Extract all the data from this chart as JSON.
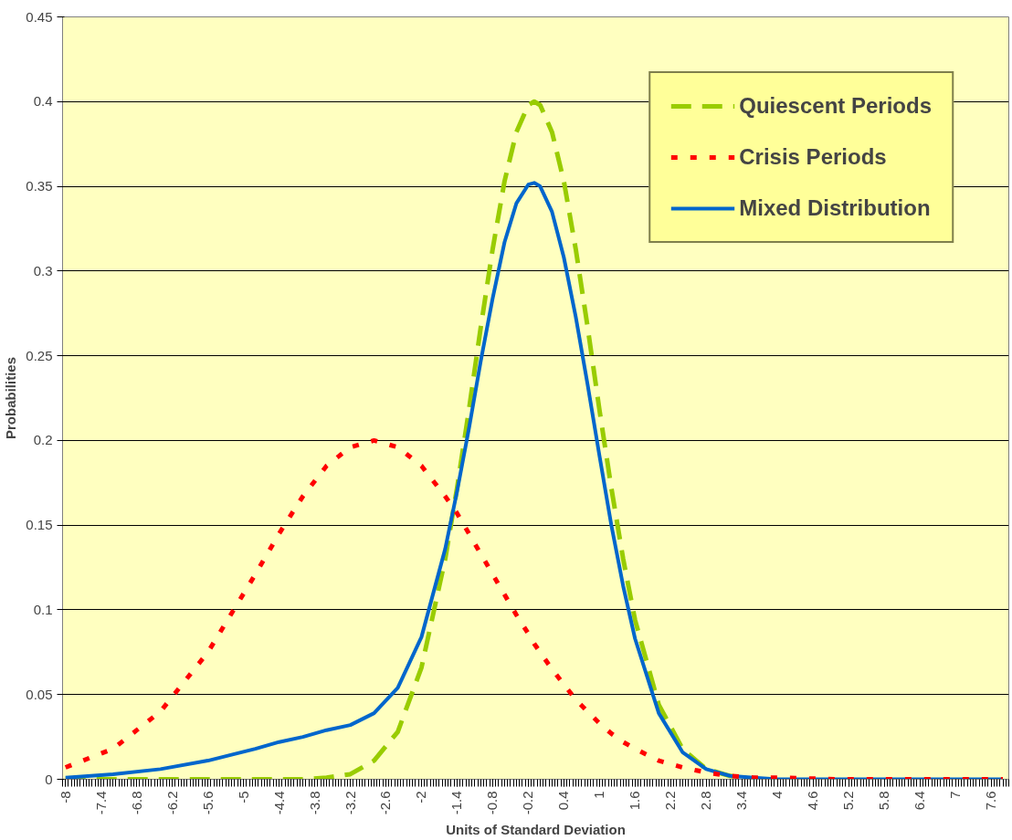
{
  "chart_data": {
    "type": "line",
    "xlabel": "Units of Standard Deviation",
    "ylabel": "Probabilities",
    "x": [
      -8,
      -7.2,
      -6.4,
      -5.6,
      -4.8,
      -4.4,
      -4,
      -3.6,
      -3.2,
      -2.8,
      -2.4,
      -2,
      -1.6,
      -1.4,
      -1.2,
      -1,
      -0.8,
      -0.6,
      -0.4,
      -0.2,
      -0.1,
      0,
      0.2,
      0.4,
      0.6,
      0.8,
      1,
      1.2,
      1.4,
      1.6,
      2,
      2.4,
      2.8,
      3.2,
      3.6,
      4,
      5,
      6,
      7,
      7.8
    ],
    "series": [
      {
        "name": "Quiescent Periods",
        "color": "#99cc00",
        "line_style": "dashed",
        "values": [
          0,
          0,
          0,
          0,
          0,
          0,
          0,
          0.001,
          0.003,
          0.011,
          0.028,
          0.066,
          0.13,
          0.172,
          0.218,
          0.267,
          0.313,
          0.353,
          0.382,
          0.398,
          0.4,
          0.398,
          0.382,
          0.353,
          0.313,
          0.267,
          0.218,
          0.172,
          0.13,
          0.094,
          0.044,
          0.018,
          0.006,
          0.002,
          0,
          null,
          null,
          null,
          null,
          null
        ]
      },
      {
        "name": "Crisis Periods",
        "color": "#ff0000",
        "line_style": "dotted",
        "values": [
          0.007,
          0.018,
          0.04,
          0.075,
          0.121,
          0.145,
          0.167,
          0.185,
          0.196,
          0.2,
          0.196,
          0.185,
          0.167,
          0.157,
          0.145,
          0.133,
          0.121,
          0.109,
          0.097,
          0.086,
          0.08,
          0.075,
          0.065,
          0.056,
          0.047,
          0.04,
          0.033,
          0.027,
          0.022,
          0.018,
          0.011,
          0.007,
          0.004,
          0.002,
          0.001,
          0.001,
          0,
          0,
          0,
          0
        ]
      },
      {
        "name": "Mixed Distribution",
        "color": "#0066cc",
        "line_style": "solid",
        "values": [
          0.001,
          0.003,
          0.006,
          0.011,
          0.018,
          0.022,
          0.025,
          0.029,
          0.032,
          0.039,
          0.054,
          0.084,
          0.136,
          0.17,
          0.207,
          0.247,
          0.284,
          0.317,
          0.34,
          0.351,
          0.352,
          0.35,
          0.335,
          0.308,
          0.273,
          0.233,
          0.191,
          0.15,
          0.114,
          0.083,
          0.039,
          0.016,
          0.006,
          0.002,
          0.001,
          0,
          0,
          0,
          0,
          0
        ]
      }
    ],
    "xlim": [
      -8.05,
      7.9
    ],
    "xticks": [
      -8,
      -7.4,
      -6.8,
      -6.2,
      -5.6,
      -5,
      -4.4,
      -3.8,
      -3.2,
      -2.6,
      -2,
      -1.4,
      -0.8,
      -0.2,
      0.4,
      1,
      1.6,
      2.2,
      2.8,
      3.4,
      4,
      4.6,
      5.2,
      5.8,
      6.4,
      7,
      7.6
    ],
    "ylim": [
      0,
      0.45
    ],
    "yticks": [
      0,
      0.05,
      0.1,
      0.15,
      0.2,
      0.25,
      0.3,
      0.35,
      0.4,
      0.45
    ],
    "grid": "y",
    "legend": "top right",
    "marker": "none"
  }
}
